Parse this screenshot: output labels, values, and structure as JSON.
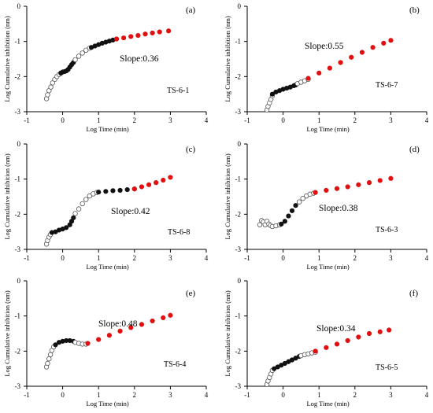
{
  "chart_data": [
    {
      "type": "scatter",
      "panel": "(a)",
      "sample": "TS-6-1",
      "slope_text": "Slope:0.36",
      "xlabel": "Log Time (min)",
      "ylabel": "Log Cumulative inhibition (nm)",
      "xlim": [
        -1,
        4
      ],
      "ylim": [
        -3,
        0
      ],
      "xticks": [
        -1,
        0,
        1,
        2,
        3,
        4
      ],
      "yticks": [
        -3,
        -2,
        -1,
        0
      ],
      "series": [
        {
          "marker": "open",
          "x": [
            -0.45,
            -0.42,
            -0.38,
            -0.33,
            -0.28,
            -0.22,
            -0.16,
            -0.1,
            -0.05
          ],
          "y": [
            -2.63,
            -2.52,
            -2.4,
            -2.3,
            -2.18,
            -2.08,
            -2.0,
            -1.94,
            -1.9
          ]
        },
        {
          "marker": "filled-black",
          "x": [
            -0.05,
            0.0,
            0.05,
            0.1,
            0.15,
            0.2,
            0.25,
            0.3
          ],
          "y": [
            -1.9,
            -1.87,
            -1.86,
            -1.84,
            -1.8,
            -1.73,
            -1.66,
            -1.6
          ]
        },
        {
          "marker": "open",
          "x": [
            0.35,
            0.45,
            0.55,
            0.65,
            0.75
          ],
          "y": [
            -1.52,
            -1.42,
            -1.33,
            -1.25,
            -1.19
          ]
        },
        {
          "marker": "filled-black",
          "x": [
            0.8,
            0.9,
            1.0,
            1.1,
            1.2,
            1.3,
            1.4,
            1.5
          ],
          "y": [
            -1.17,
            -1.13,
            -1.09,
            -1.05,
            -1.02,
            -0.99,
            -0.96,
            -0.93
          ]
        },
        {
          "marker": "filled-red",
          "x": [
            1.5,
            1.7,
            1.9,
            2.1,
            2.3,
            2.5,
            2.7,
            2.95
          ],
          "y": [
            -0.93,
            -0.9,
            -0.86,
            -0.83,
            -0.79,
            -0.76,
            -0.73,
            -0.7
          ]
        }
      ]
    },
    {
      "type": "scatter",
      "panel": "(b)",
      "sample": "TS-6-7",
      "slope_text": "Slope:0.55",
      "xlabel": "Log Time (min)",
      "ylabel": "Log Cumulative inhibition (nm)",
      "xlim": [
        -1,
        4
      ],
      "ylim": [
        -3,
        0
      ],
      "xticks": [
        -1,
        0,
        1,
        2,
        3,
        4
      ],
      "yticks": [
        -3,
        -2,
        -1,
        0
      ],
      "series": [
        {
          "marker": "open",
          "x": [
            -0.45,
            -0.42,
            -0.38,
            -0.34,
            -0.3
          ],
          "y": [
            -2.95,
            -2.85,
            -2.75,
            -2.65,
            -2.55
          ]
        },
        {
          "marker": "filled-black",
          "x": [
            -0.3,
            -0.2,
            -0.1,
            0.0,
            0.1,
            0.2,
            0.3,
            0.35
          ],
          "y": [
            -2.5,
            -2.44,
            -2.4,
            -2.36,
            -2.33,
            -2.3,
            -2.26,
            -2.24
          ]
        },
        {
          "marker": "open",
          "x": [
            0.4,
            0.5,
            0.6,
            0.7
          ],
          "y": [
            -2.2,
            -2.16,
            -2.12,
            -2.08
          ]
        },
        {
          "marker": "filled-red",
          "x": [
            0.7,
            1.0,
            1.3,
            1.6,
            1.9,
            2.2,
            2.5,
            2.8,
            3.0
          ],
          "y": [
            -2.05,
            -1.9,
            -1.76,
            -1.6,
            -1.45,
            -1.31,
            -1.17,
            -1.05,
            -0.97
          ]
        }
      ]
    },
    {
      "type": "scatter",
      "panel": "(c)",
      "sample": "TS-6-8",
      "slope_text": "Slope:0.42",
      "xlabel": "Log Time (min)",
      "ylabel": "Log Cumulative inhibition (nm)",
      "xlim": [
        -1,
        4
      ],
      "ylim": [
        -3,
        0
      ],
      "xticks": [
        -1,
        0,
        1,
        2,
        3,
        4
      ],
      "yticks": [
        -3,
        -2,
        -1,
        0
      ],
      "series": [
        {
          "marker": "open",
          "x": [
            -0.45,
            -0.42,
            -0.38,
            -0.34
          ],
          "y": [
            -2.85,
            -2.75,
            -2.65,
            -2.58
          ]
        },
        {
          "marker": "filled-black",
          "x": [
            -0.3,
            -0.2,
            -0.1,
            0.0,
            0.1,
            0.2,
            0.25,
            0.3
          ],
          "y": [
            -2.52,
            -2.5,
            -2.45,
            -2.42,
            -2.38,
            -2.3,
            -2.2,
            -2.1
          ]
        },
        {
          "marker": "open",
          "x": [
            0.35,
            0.45,
            0.55,
            0.65,
            0.75,
            0.85,
            0.95
          ],
          "y": [
            -1.98,
            -1.85,
            -1.7,
            -1.58,
            -1.48,
            -1.42,
            -1.38
          ]
        },
        {
          "marker": "filled-black",
          "x": [
            1.0,
            1.2,
            1.4,
            1.6,
            1.8,
            2.0
          ],
          "y": [
            -1.37,
            -1.35,
            -1.33,
            -1.32,
            -1.3,
            -1.28
          ]
        },
        {
          "marker": "filled-red",
          "x": [
            2.0,
            2.2,
            2.4,
            2.6,
            2.8,
            3.0
          ],
          "y": [
            -1.28,
            -1.22,
            -1.16,
            -1.1,
            -1.03,
            -0.95
          ]
        }
      ]
    },
    {
      "type": "scatter",
      "panel": "(d)",
      "sample": "TS-6-3",
      "slope_text": "Slope:0.38",
      "xlabel": "Log Time (min)",
      "ylabel": "Log Cumulative inhibition (nm)",
      "xlim": [
        -1,
        4
      ],
      "ylim": [
        -3,
        0
      ],
      "xticks": [
        -1,
        0,
        1,
        2,
        3,
        4
      ],
      "yticks": [
        -3,
        -2,
        -1,
        0
      ],
      "series": [
        {
          "marker": "open",
          "x": [
            -0.65,
            -0.6,
            -0.55,
            -0.5,
            -0.45,
            -0.4,
            -0.35,
            -0.3,
            -0.2,
            -0.1
          ],
          "y": [
            -2.3,
            -2.18,
            -2.22,
            -2.3,
            -2.2,
            -2.28,
            -2.32,
            -2.35,
            -2.33,
            -2.3
          ]
        },
        {
          "marker": "filled-black",
          "x": [
            -0.05,
            0.05,
            0.15,
            0.25,
            0.35
          ],
          "y": [
            -2.28,
            -2.2,
            -2.05,
            -1.9,
            -1.75
          ]
        },
        {
          "marker": "open",
          "x": [
            0.45,
            0.55,
            0.65,
            0.75,
            0.85
          ],
          "y": [
            -1.65,
            -1.55,
            -1.48,
            -1.43,
            -1.4
          ]
        },
        {
          "marker": "filled-red",
          "x": [
            0.9,
            1.2,
            1.5,
            1.8,
            2.1,
            2.4,
            2.7,
            3.0
          ],
          "y": [
            -1.38,
            -1.32,
            -1.27,
            -1.22,
            -1.16,
            -1.1,
            -1.04,
            -0.98
          ]
        }
      ]
    },
    {
      "type": "scatter",
      "panel": "(e)",
      "sample": "TS-6-4",
      "slope_text": "Slope:0.48",
      "xlabel": "Log Time (min)",
      "ylabel": "Log Cumulative inhibition (nm)",
      "xlim": [
        -1,
        4
      ],
      "ylim": [
        -3,
        0
      ],
      "xticks": [
        -1,
        0,
        1,
        2,
        3,
        4
      ],
      "yticks": [
        -3,
        -2,
        -1,
        0
      ],
      "series": [
        {
          "marker": "open",
          "x": [
            -0.45,
            -0.42,
            -0.38,
            -0.34,
            -0.3,
            -0.25
          ],
          "y": [
            -2.45,
            -2.35,
            -2.22,
            -2.1,
            -1.98,
            -1.88
          ]
        },
        {
          "marker": "filled-black",
          "x": [
            -0.2,
            -0.1,
            0.0,
            0.1,
            0.2,
            0.3
          ],
          "y": [
            -1.82,
            -1.75,
            -1.72,
            -1.7,
            -1.7,
            -1.72
          ]
        },
        {
          "marker": "open",
          "x": [
            0.35,
            0.45,
            0.55,
            0.65
          ],
          "y": [
            -1.75,
            -1.78,
            -1.8,
            -1.8
          ]
        },
        {
          "marker": "filled-red",
          "x": [
            0.7,
            1.0,
            1.3,
            1.6,
            1.9,
            2.2,
            2.5,
            2.8,
            3.0
          ],
          "y": [
            -1.78,
            -1.67,
            -1.55,
            -1.43,
            -1.33,
            -1.24,
            -1.14,
            -1.05,
            -0.98
          ]
        }
      ]
    },
    {
      "type": "scatter",
      "panel": "(f)",
      "sample": "TS-6-5",
      "slope_text": "Slope:0.34",
      "xlabel": "Log Time (min)",
      "ylabel": "Log Cumulative inhibition (nm)",
      "xlim": [
        -1,
        4
      ],
      "ylim": [
        -3,
        0
      ],
      "xticks": [
        -1,
        0,
        1,
        2,
        3,
        4
      ],
      "yticks": [
        -3,
        -2,
        -1,
        0
      ],
      "series": [
        {
          "marker": "open",
          "x": [
            -0.45,
            -0.42,
            -0.38,
            -0.34,
            -0.3
          ],
          "y": [
            -2.95,
            -2.85,
            -2.75,
            -2.65,
            -2.55
          ]
        },
        {
          "marker": "filled-black",
          "x": [
            -0.25,
            -0.15,
            -0.05,
            0.05,
            0.15,
            0.25,
            0.35,
            0.45
          ],
          "y": [
            -2.5,
            -2.45,
            -2.4,
            -2.35,
            -2.3,
            -2.25,
            -2.2,
            -2.15
          ]
        },
        {
          "marker": "open",
          "x": [
            0.5,
            0.6,
            0.7,
            0.8,
            0.9
          ],
          "y": [
            -2.13,
            -2.1,
            -2.08,
            -2.05,
            -2.03
          ]
        },
        {
          "marker": "filled-red",
          "x": [
            0.9,
            1.2,
            1.5,
            1.8,
            2.1,
            2.4,
            2.7,
            2.95
          ],
          "y": [
            -2.0,
            -1.9,
            -1.8,
            -1.7,
            -1.6,
            -1.5,
            -1.45,
            -1.4
          ]
        }
      ]
    }
  ],
  "colors": {
    "red_marker": "#e01010",
    "black_marker": "#111111",
    "open_marker_stroke": "#555555",
    "axis": "#000000"
  }
}
